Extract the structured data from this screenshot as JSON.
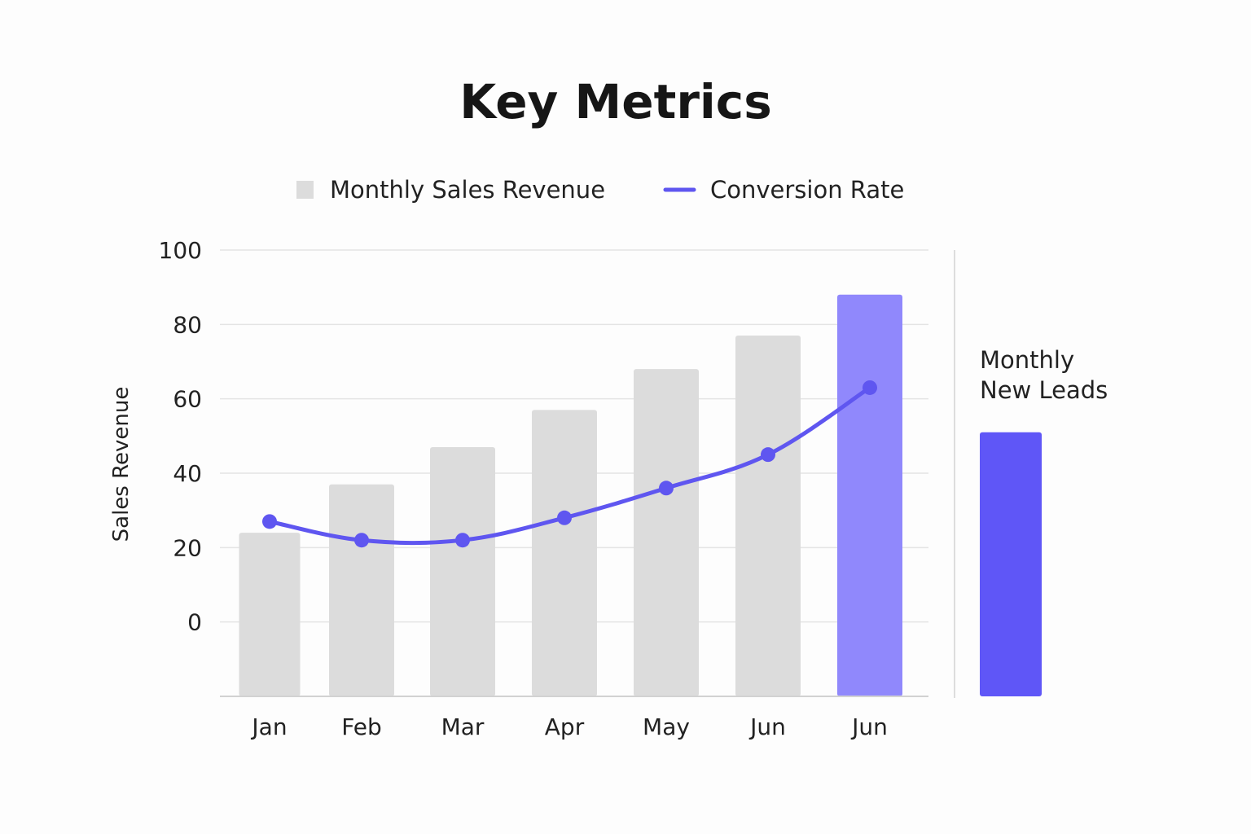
{
  "chart_data": {
    "type": "bar",
    "title": "Key Metrics",
    "ylabel": "Sales Revenue",
    "xlabel": "",
    "categories": [
      "Jan",
      "Feb",
      "Mar",
      "Apr",
      "May",
      "Jun",
      "Jun"
    ],
    "yticks": [
      "100",
      "80",
      "60",
      "40",
      "20",
      "0"
    ],
    "ylim": [
      -20,
      100
    ],
    "grid": true,
    "legend_position": "top-center",
    "series": [
      {
        "name": "Monthly Sales Revenue",
        "type": "bar",
        "values": [
          24,
          37,
          47,
          57,
          68,
          77,
          88
        ],
        "color": "#dcdcdc",
        "highlight_color": "#9088fc",
        "highlight_index": 6
      },
      {
        "name": "Conversion Rate",
        "type": "line",
        "values": [
          27,
          22,
          22,
          28,
          36,
          45,
          63
        ],
        "color": "#5f56f0"
      }
    ],
    "side_panel": {
      "label_lines": [
        "Monthly",
        "New Leads"
      ],
      "value": 51,
      "color": "#5f56f7"
    }
  }
}
